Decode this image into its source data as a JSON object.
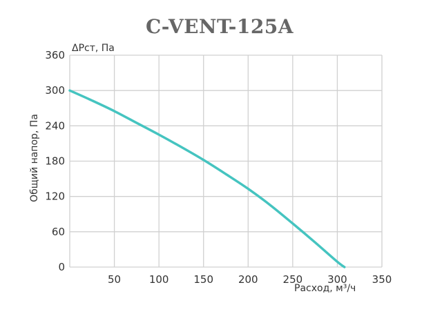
{
  "chart_data": {
    "type": "line",
    "title": "C-VENT-125A",
    "ylabel": "Общий напор, Па",
    "ylabel_top": "ΔPст, Па",
    "xlabel": "Расход, м³/ч",
    "xlim": [
      0,
      350
    ],
    "ylim": [
      0,
      360
    ],
    "x_ticks": [
      50,
      100,
      150,
      200,
      250,
      300,
      350
    ],
    "y_ticks": [
      0,
      60,
      120,
      180,
      240,
      300,
      360
    ],
    "grid": true,
    "series": [
      {
        "color": "#45c4c0",
        "x": [
          0,
          25,
          50,
          75,
          100,
          125,
          150,
          175,
          200,
          225,
          250,
          275,
          300,
          308
        ],
        "y": [
          300,
          283,
          265,
          245,
          225,
          204,
          182,
          158,
          133,
          105,
          74,
          42,
          9,
          0
        ]
      }
    ]
  }
}
